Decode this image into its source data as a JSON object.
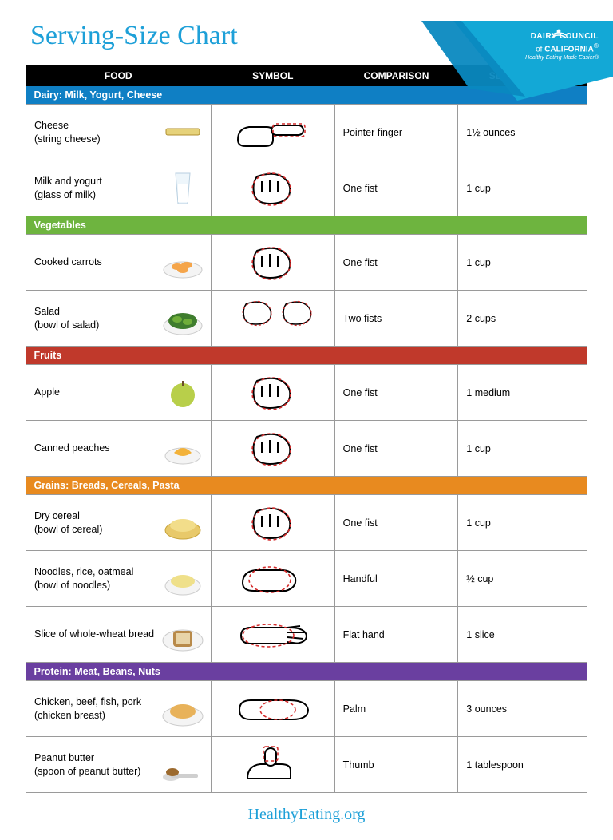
{
  "brand": {
    "line1": "DAIRY COUNCIL",
    "line2_pre": "of ",
    "line2_bold": "CALIFORNIA",
    "line2_sup": "®",
    "tagline": "Healthy Eating Made Easier®",
    "banner_fill": "#13a8d6",
    "banner_fill2": "#0a89c0"
  },
  "title": "Serving-Size Chart",
  "title_color": "#1ea0d8",
  "footer": "HealthyEating.org",
  "columns": {
    "food": "FOOD",
    "symbol": "SYMBOL",
    "comparison": "COMPARISON",
    "serving": "SERVING SIZE"
  },
  "header_bg": "#000000",
  "row_border": "#9a9a9a",
  "symbol_outline": "#d42c2c",
  "sections": [
    {
      "label": "Dairy: Milk, Yogurt, Cheese",
      "color": "#0f7fc4",
      "rows": [
        {
          "food": "Cheese",
          "sub": "(string cheese)",
          "comparison": "Pointer finger",
          "serving": "1½ ounces",
          "hand": "pointer",
          "img": "stick"
        },
        {
          "food": "Milk and yogurt",
          "sub": "(glass of milk)",
          "comparison": "One fist",
          "serving": "1 cup",
          "hand": "fist",
          "img": "glass"
        }
      ]
    },
    {
      "label": "Vegetables",
      "color": "#6eb43f",
      "rows": [
        {
          "food": "Cooked carrots",
          "sub": "",
          "comparison": "One fist",
          "serving": "1 cup",
          "hand": "fist",
          "img": "carrots"
        },
        {
          "food": "Salad",
          "sub": "(bowl of salad)",
          "comparison": "Two fists",
          "serving": "2 cups",
          "hand": "twofists",
          "img": "salad"
        }
      ]
    },
    {
      "label": "Fruits",
      "color": "#c0392b",
      "rows": [
        {
          "food": "Apple",
          "sub": "",
          "comparison": "One fist",
          "serving": "1 medium",
          "hand": "fist",
          "img": "apple"
        },
        {
          "food": "Canned peaches",
          "sub": "",
          "comparison": "One fist",
          "serving": "1 cup",
          "hand": "fist",
          "img": "peaches"
        }
      ]
    },
    {
      "label": "Grains: Breads, Cereals, Pasta",
      "color": "#e88a1f",
      "rows": [
        {
          "food": "Dry cereal",
          "sub": "(bowl of cereal)",
          "comparison": "One fist",
          "serving": "1 cup",
          "hand": "fist",
          "img": "cereal"
        },
        {
          "food": "Noodles, rice, oatmeal",
          "sub": "(bowl of noodles)",
          "comparison": "Handful",
          "serving": "½ cup",
          "hand": "handful",
          "img": "noodles"
        },
        {
          "food": "Slice of whole-wheat bread",
          "sub": "",
          "comparison": "Flat hand",
          "serving": "1 slice",
          "hand": "flat",
          "img": "bread"
        }
      ]
    },
    {
      "label": "Protein: Meat, Beans, Nuts",
      "color": "#6a3fa0",
      "rows": [
        {
          "food": "Chicken, beef, fish, pork",
          "sub": "(chicken breast)",
          "comparison": "Palm",
          "serving": "3 ounces",
          "hand": "palm",
          "img": "chicken"
        },
        {
          "food": "Peanut butter",
          "sub": "(spoon of peanut butter)",
          "comparison": "Thumb",
          "serving": "1 tablespoon",
          "hand": "thumb",
          "img": "pb"
        }
      ]
    }
  ]
}
